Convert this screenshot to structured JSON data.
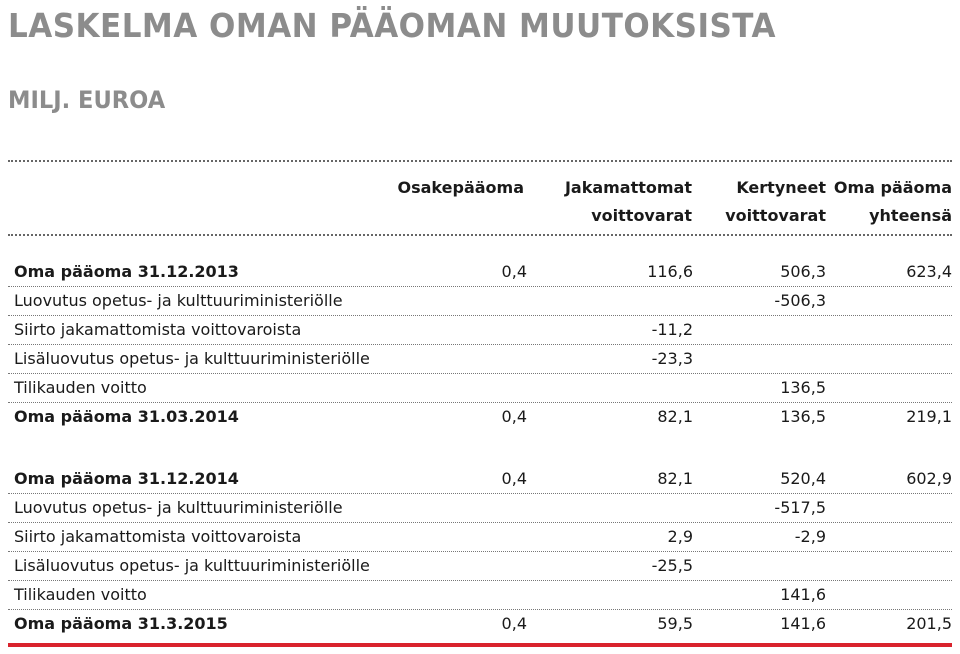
{
  "title": "LASKELMA OMAN PÄÄOMAN MUUTOKSISTA",
  "subtitle": "MILJ. EUROA",
  "columns": [
    {
      "line1": "Osakepääoma",
      "line2": ""
    },
    {
      "line1": "Jakamattomat",
      "line2": "voittovarat"
    },
    {
      "line1": "Kertyneet",
      "line2": "voittovarat"
    },
    {
      "line1": "Oma pääoma",
      "line2": "yhteensä"
    }
  ],
  "section1": [
    {
      "label": "Oma pääoma 31.12.2013",
      "v": [
        "0,4",
        "116,6",
        "506,3",
        "623,4"
      ]
    },
    {
      "label": "Luovutus opetus- ja kulttuuriministeriölle",
      "v": [
        "",
        "",
        "-506,3",
        ""
      ]
    },
    {
      "label": "Siirto jakamattomista voittovaroista",
      "v": [
        "",
        "-11,2",
        "",
        ""
      ]
    },
    {
      "label": "Lisäluovutus opetus- ja kulttuuriministeriölle",
      "v": [
        "",
        "-23,3",
        "",
        ""
      ]
    },
    {
      "label": "Tilikauden voitto",
      "v": [
        "",
        "",
        "136,5",
        ""
      ]
    },
    {
      "label": "Oma pääoma 31.03.2014",
      "v": [
        "0,4",
        "82,1",
        "136,5",
        "219,1"
      ]
    }
  ],
  "section2": [
    {
      "label": "Oma pääoma 31.12.2014",
      "v": [
        "0,4",
        "82,1",
        "520,4",
        "602,9"
      ]
    },
    {
      "label": "Luovutus opetus- ja kulttuuriministeriölle",
      "v": [
        "",
        "",
        "-517,5",
        ""
      ]
    },
    {
      "label": "Siirto jakamattomista voittovaroista",
      "v": [
        "",
        "2,9",
        "-2,9",
        ""
      ]
    },
    {
      "label": "Lisäluovutus opetus- ja kulttuuriministeriölle",
      "v": [
        "",
        "-25,5",
        "",
        ""
      ]
    },
    {
      "label": "Tilikauden voitto",
      "v": [
        "",
        "",
        "141,6",
        ""
      ]
    },
    {
      "label": "Oma pääoma 31.3.2015",
      "v": [
        "0,4",
        "59,5",
        "141,6",
        "201,5"
      ]
    }
  ],
  "colors": {
    "title": "#8c8c8c",
    "accent_bar": "#d9232d"
  }
}
